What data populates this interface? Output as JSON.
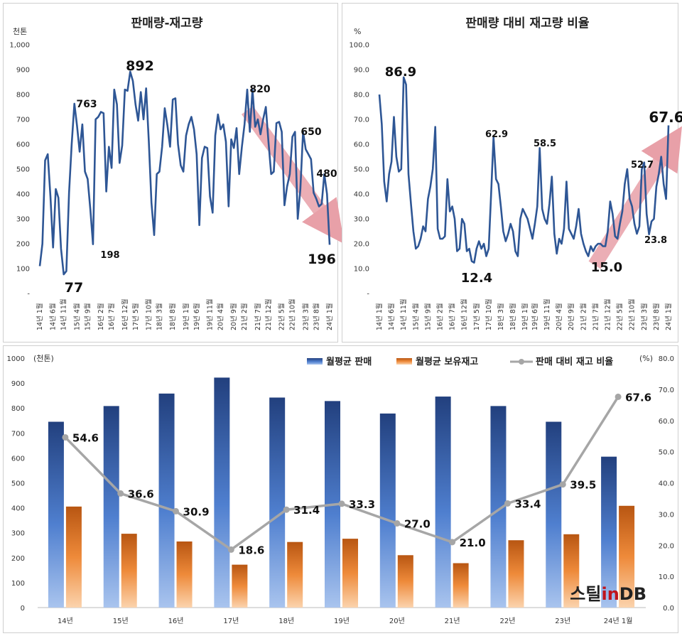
{
  "brand": {
    "logo_text": "스틸inDB",
    "logo_color": "#c0141c"
  },
  "chart_data": [
    {
      "type": "line",
      "title": "판매량-재고량",
      "ylabel": "천톤",
      "ylim": [
        0,
        1000
      ],
      "yticks": [
        "-",
        "100",
        "200",
        "300",
        "400",
        "500",
        "600",
        "700",
        "800",
        "900",
        "1,000"
      ],
      "x_tick_labels": [
        "14년 1월",
        "14년 6월",
        "14년 11월",
        "15년 4월",
        "15년 9월",
        "16년 2월",
        "16년 7월",
        "16년 12월",
        "17년 5월",
        "17년 10월",
        "18년 3월",
        "18년 8월",
        "19년 1월",
        "19년 6월",
        "19년 11월",
        "20년 4월",
        "20년 9월",
        "21년 2월",
        "21년 7월",
        "21년 12월",
        "22년 5월",
        "22년 10월",
        "23년 3월",
        "23년 8월",
        "24년 1월"
      ],
      "line_color": "#2e5695",
      "values": [
        110,
        200,
        535,
        560,
        390,
        185,
        420,
        385,
        180,
        77,
        90,
        405,
        600,
        763,
        675,
        570,
        680,
        490,
        460,
        340,
        198,
        700,
        710,
        730,
        725,
        410,
        590,
        505,
        820,
        760,
        525,
        595,
        820,
        815,
        892,
        855,
        760,
        695,
        810,
        700,
        825,
        610,
        365,
        235,
        480,
        490,
        590,
        745,
        675,
        590,
        780,
        785,
        600,
        515,
        490,
        635,
        680,
        710,
        660,
        560,
        275,
        545,
        590,
        585,
        390,
        325,
        635,
        720,
        660,
        680,
        610,
        350,
        620,
        585,
        665,
        480,
        590,
        680,
        820,
        650,
        820,
        670,
        700,
        640,
        700,
        750,
        610,
        480,
        490,
        685,
        690,
        650,
        355,
        430,
        480,
        630,
        650,
        300,
        420,
        650,
        580,
        560,
        540,
        405,
        380,
        350,
        360,
        480,
        400,
        196
      ],
      "annotations": [
        "892",
        "820",
        "763",
        "650",
        "480",
        "198",
        "77",
        "196"
      ],
      "highlight_label": "196"
    },
    {
      "type": "line",
      "title": "판매량 대비 재고량 비율",
      "ylabel": "%",
      "ylim": [
        0,
        100
      ],
      "yticks": [
        "-",
        "10.0",
        "20.0",
        "30.0",
        "40.0",
        "50.0",
        "60.0",
        "70.0",
        "80.0",
        "90.0",
        "100.0"
      ],
      "x_tick_labels": [
        "14년 1월",
        "14년 6월",
        "14년 11월",
        "15년 4월",
        "15년 9월",
        "16년 2월",
        "16년 7월",
        "16년 12월",
        "17년 5월",
        "17년 10월",
        "18년 3월",
        "18년 8월",
        "19년 1월",
        "19년 6월",
        "19년 11월",
        "20년 4월",
        "20년 9월",
        "21년 2월",
        "21년 7월",
        "21년 12월",
        "22년 5월",
        "22년 10월",
        "23년 3월",
        "23년 8월",
        "24년 1월"
      ],
      "line_color": "#2e5695",
      "values": [
        80,
        68,
        45,
        37,
        48,
        53,
        71,
        55,
        49,
        50,
        86.9,
        84,
        48,
        36,
        25,
        18,
        19,
        22,
        27,
        25,
        38,
        43,
        50,
        67,
        26,
        22,
        22,
        23,
        46,
        33,
        35,
        30,
        17,
        18,
        30,
        28,
        17,
        18,
        13,
        12.4,
        18,
        21,
        18,
        20,
        15,
        18,
        40,
        62.9,
        46,
        44,
        35,
        25,
        21,
        24,
        28,
        25,
        17,
        15,
        30,
        34,
        32,
        30,
        26,
        22,
        28,
        35,
        58.5,
        34,
        30,
        28,
        36,
        47,
        24,
        16,
        22,
        20,
        26,
        45,
        26,
        24,
        22,
        27,
        34,
        24,
        20,
        17,
        15.0,
        19,
        17,
        19,
        20,
        20,
        19,
        19,
        25,
        37,
        32,
        23,
        22,
        28,
        33,
        44,
        50,
        38,
        35,
        28,
        24,
        27,
        50,
        52.7,
        32,
        23.8,
        29,
        30,
        43,
        48,
        55,
        44,
        38,
        67.6
      ],
      "annotations": [
        "86.9",
        "62.9",
        "58.5",
        "12.4",
        "15.0",
        "52.7",
        "23.8",
        "67.6"
      ],
      "highlight_label": "67.6"
    },
    {
      "type": "bar",
      "categories": [
        "14년",
        "15년",
        "16년",
        "17년",
        "18년",
        "19년",
        "20년",
        "21년",
        "22년",
        "23년",
        "24년 1월"
      ],
      "ylabel": "(천톤)",
      "y2label": "(%)",
      "ylim": [
        0,
        1000
      ],
      "y2lim": [
        0,
        80
      ],
      "yticks": [
        "0",
        "100",
        "200",
        "300",
        "400",
        "500",
        "600",
        "700",
        "800",
        "900",
        "1000"
      ],
      "y2ticks": [
        "0.0",
        "10.0",
        "20.0",
        "30.0",
        "40.0",
        "50.0",
        "60.0",
        "70.0",
        "80.0"
      ],
      "series": [
        {
          "name": "월평균 판매",
          "values": [
            745,
            808,
            858,
            922,
            842,
            828,
            778,
            846,
            808,
            745,
            605
          ],
          "color": "#2e5aa8"
        },
        {
          "name": "월평균 보유재고",
          "values": [
            405,
            296,
            265,
            172,
            263,
            276,
            210,
            178,
            270,
            294,
            408
          ],
          "color": "#e0701c"
        },
        {
          "name": "판매 대비 재고 비율",
          "values": [
            54.6,
            36.6,
            30.9,
            18.6,
            31.4,
            33.3,
            27.0,
            21.0,
            33.4,
            39.5,
            67.6
          ],
          "labels": [
            "54.6",
            "36.6",
            "30.9",
            "18.6",
            "31.4",
            "33.3",
            "27.0",
            "21.0",
            "33.4",
            "39.5",
            "67.6"
          ],
          "color": "#a6a6a6",
          "axis": "right"
        }
      ],
      "legend": "top-right"
    }
  ]
}
